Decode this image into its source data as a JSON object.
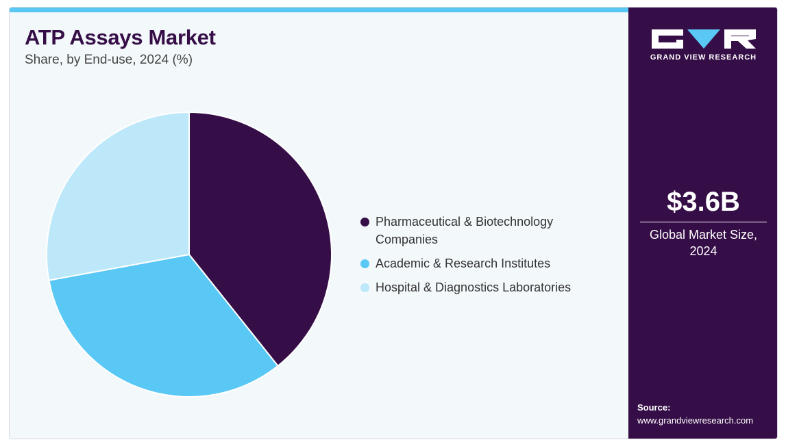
{
  "header": {
    "title": "ATP Assays Market",
    "subtitle": "Share, by End-use, 2024 (%)"
  },
  "chart_data": {
    "type": "pie",
    "categories": [
      "Pharmaceutical & Biotechnology Companies",
      "Academic & Research Institutes",
      "Hospital & Diagnostics Laboratories"
    ],
    "values": [
      39.3,
      32.8,
      27.9
    ],
    "colors": [
      "#360e47",
      "#5ac8f5",
      "#bce8f9"
    ],
    "legend_position": "right"
  },
  "legend": {
    "items": [
      {
        "label": "Pharmaceutical & Biotechnology Companies",
        "color": "#360e47"
      },
      {
        "label": "Academic & Research Institutes",
        "color": "#5ac8f5"
      },
      {
        "label": "Hospital & Diagnostics Laboratories",
        "color": "#bce8f9"
      }
    ]
  },
  "sidebar": {
    "brand": "GRAND VIEW RESEARCH",
    "logo_icon": "gvr-logo-icon",
    "market_size": "$3.6B",
    "market_size_caption": "Global Market Size, 2024",
    "source_label": "Source:",
    "source_url": "www.grandviewresearch.com"
  },
  "colors": {
    "brand_dark": "#360e47",
    "accent": "#5ac8f5",
    "background": "#f3f8fb"
  }
}
